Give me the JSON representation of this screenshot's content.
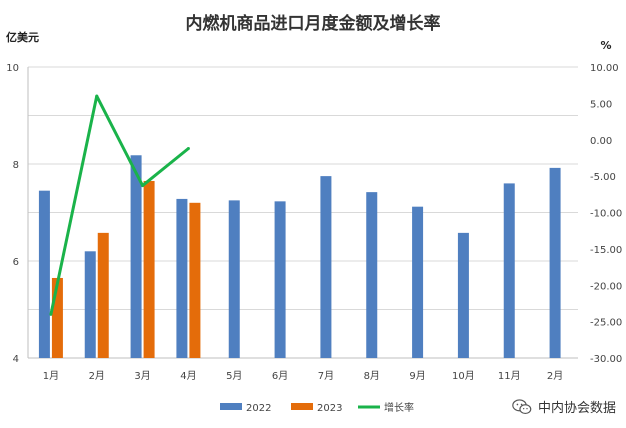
{
  "chart_data": {
    "type": "bar",
    "title": "内燃机商品进口月度金额及增长率",
    "ylabel_left": "亿美元",
    "ylabel_right": "%",
    "categories": [
      "1月",
      "2月",
      "3月",
      "4月",
      "5月",
      "6月",
      "7月",
      "8月",
      "9月",
      "10月",
      "11月",
      "2月"
    ],
    "ylim_left": [
      4,
      10
    ],
    "yticks_left": [
      "4",
      "6",
      "8",
      "10"
    ],
    "ylim_right": [
      -30,
      10
    ],
    "yticks_right": [
      "-30.00",
      "-25.00",
      "-20.00",
      "-15.00",
      "-10.00",
      "-5.00",
      "0.00",
      "5.00",
      "10.00"
    ],
    "grid": true,
    "legend_position": "bottom",
    "series": [
      {
        "name": "2022",
        "type": "bar",
        "axis": "left",
        "color": "#4f7fc0",
        "values": [
          7.45,
          6.2,
          8.18,
          7.28,
          7.25,
          7.23,
          7.75,
          7.42,
          7.12,
          6.58,
          7.6,
          7.92
        ]
      },
      {
        "name": "2023",
        "type": "bar",
        "axis": "left",
        "color": "#e46c0a",
        "values": [
          5.65,
          6.58,
          7.65,
          7.2,
          null,
          null,
          null,
          null,
          null,
          null,
          null,
          null
        ]
      },
      {
        "name": "增长率",
        "type": "line",
        "axis": "right",
        "color": "#1ab34a",
        "values": [
          -24.0,
          6.0,
          -6.3,
          -1.2,
          null,
          null,
          null,
          null,
          null,
          null,
          null,
          null
        ]
      }
    ]
  },
  "watermark": {
    "icon": "wechat-icon",
    "text": "中内协会数据"
  }
}
